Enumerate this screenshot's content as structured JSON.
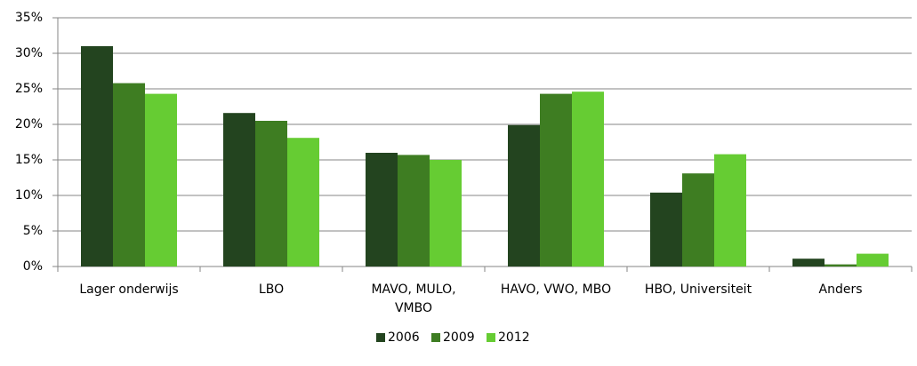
{
  "chart_data": {
    "type": "bar",
    "categories": [
      "Lager onderwijs",
      "LBO",
      "MAVO, MULO, VMBO",
      "HAVO, VWO, MBO",
      "HBO, Universiteit",
      "Anders"
    ],
    "series": [
      {
        "name": "2006",
        "color": "#23441f",
        "values": [
          31,
          21.6,
          16,
          19.9,
          10.4,
          1.1
        ]
      },
      {
        "name": "2009",
        "color": "#3e7d22",
        "values": [
          25.8,
          20.5,
          15.7,
          24.3,
          13.1,
          0.3
        ]
      },
      {
        "name": "2012",
        "color": "#66cc33",
        "values": [
          24.3,
          18.1,
          15.0,
          24.6,
          15.8,
          1.8
        ]
      }
    ],
    "ylim": [
      0,
      35
    ],
    "yticks": [
      {
        "value": 0,
        "label": "0%"
      },
      {
        "value": 5,
        "label": "5%"
      },
      {
        "value": 10,
        "label": "10%"
      },
      {
        "value": 15,
        "label": "15%"
      },
      {
        "value": 20,
        "label": "20%"
      },
      {
        "value": 25,
        "label": "25%"
      },
      {
        "value": 30,
        "label": "30%"
      },
      {
        "value": 35,
        "label": "35%"
      }
    ],
    "grid": true,
    "legend": "bottom"
  }
}
